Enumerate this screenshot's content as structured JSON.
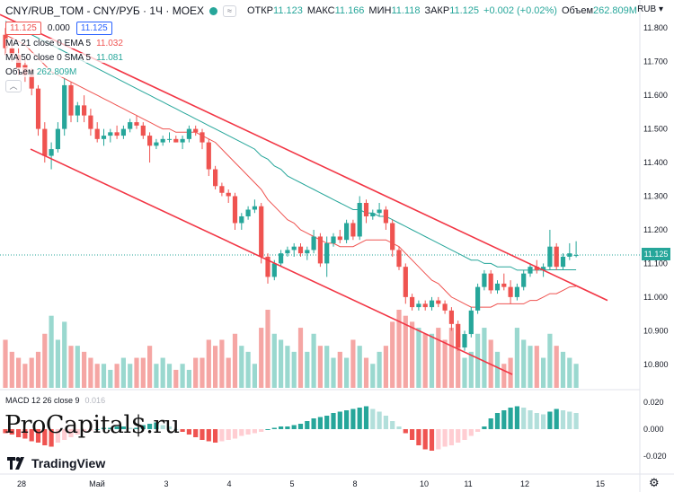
{
  "header": {
    "symbol": "CNY/RUB_TOM - CNY/РУБ · 1Ч · MOEX",
    "pill": "≈",
    "ohlc": [
      {
        "label": "ОТКР",
        "value": "11.123"
      },
      {
        "label": "МАКС",
        "value": "11.166"
      },
      {
        "label": "МИН",
        "value": "11.118"
      },
      {
        "label": "ЗАКР",
        "value": "11.125"
      }
    ],
    "change": "+0.002 (+0.02%)",
    "volume_label": "Объем",
    "volume_value": "262.809M"
  },
  "price_row": {
    "sell": "11.125",
    "spread": "0.000",
    "buy": "11.125"
  },
  "indicators": [
    {
      "name": "MA 21 close 0 EMA 5",
      "value": "11.032",
      "color": "#ef5350"
    },
    {
      "name": "MA 50 close 0 SMA 5",
      "value": "11.081",
      "color": "#26a69a"
    },
    {
      "name": "Объем",
      "value": "262.809M",
      "color": "#26a69a"
    }
  ],
  "collapse_icon": "chevron-up-icon",
  "macd": {
    "label": "MACD 12 26 close 9",
    "value": "0.016"
  },
  "currency": "RUB",
  "last_price_tag": "11.125",
  "watermark": "ProCapital$.ru",
  "brand": "TradingView",
  "colors": {
    "up": "#26a69a",
    "down": "#ef5350",
    "ema": "#ef5350",
    "sma": "#26a69a",
    "trend": "#f23645",
    "volume_up": "#9ad8cf",
    "volume_down": "#f5a6a4"
  },
  "chart_data": {
    "type": "candlestick",
    "timeframe": "1H",
    "y_ticks": [
      "11.800",
      "11.700",
      "11.600",
      "11.500",
      "11.400",
      "11.300",
      "11.200",
      "11.100",
      "11.000",
      "10.900",
      "10.800"
    ],
    "ylim": [
      10.73,
      11.83
    ],
    "x_ticks": [
      "28",
      "Май",
      "3",
      "4",
      "5",
      "8",
      "10",
      "11",
      "12",
      "15"
    ],
    "macd_ticks": [
      "0.020",
      "0.000",
      "-0.020"
    ],
    "macd_ylim": [
      -0.028,
      0.028
    ],
    "candles": [
      [
        11.78,
        11.8,
        11.72,
        11.74
      ],
      [
        11.74,
        11.76,
        11.7,
        11.72
      ],
      [
        11.72,
        11.74,
        11.66,
        11.68
      ],
      [
        11.69,
        11.71,
        11.64,
        11.66
      ],
      [
        11.66,
        11.68,
        11.6,
        11.62
      ],
      [
        11.62,
        11.63,
        11.48,
        11.5
      ],
      [
        11.5,
        11.52,
        11.4,
        11.42
      ],
      [
        11.42,
        11.46,
        11.38,
        11.44
      ],
      [
        11.44,
        11.52,
        11.43,
        11.5
      ],
      [
        11.5,
        11.65,
        11.48,
        11.63
      ],
      [
        11.63,
        11.64,
        11.52,
        11.54
      ],
      [
        11.54,
        11.58,
        11.52,
        11.57
      ],
      [
        11.57,
        11.6,
        11.52,
        11.54
      ],
      [
        11.54,
        11.56,
        11.48,
        11.5
      ],
      [
        11.5,
        11.52,
        11.46,
        11.47
      ],
      [
        11.47,
        11.5,
        11.45,
        11.48
      ],
      [
        11.48,
        11.5,
        11.46,
        11.49
      ],
      [
        11.49,
        11.51,
        11.47,
        11.48
      ],
      [
        11.48,
        11.51,
        11.47,
        11.5
      ],
      [
        11.5,
        11.53,
        11.49,
        11.52
      ],
      [
        11.52,
        11.54,
        11.5,
        11.51
      ],
      [
        11.51,
        11.52,
        11.47,
        11.48
      ],
      [
        11.48,
        11.49,
        11.4,
        11.45
      ],
      [
        11.45,
        11.47,
        11.44,
        11.46
      ],
      [
        11.46,
        11.48,
        11.45,
        11.47
      ],
      [
        11.47,
        11.49,
        11.46,
        11.47
      ],
      [
        11.47,
        11.48,
        11.46,
        11.46
      ],
      [
        11.46,
        11.48,
        11.44,
        11.47
      ],
      [
        11.47,
        11.51,
        11.46,
        11.5
      ],
      [
        11.5,
        11.51,
        11.48,
        11.49
      ],
      [
        11.49,
        11.5,
        11.44,
        11.46
      ],
      [
        11.46,
        11.47,
        11.36,
        11.38
      ],
      [
        11.38,
        11.39,
        11.32,
        11.33
      ],
      [
        11.33,
        11.34,
        11.3,
        11.31
      ],
      [
        11.31,
        11.32,
        11.28,
        11.3
      ],
      [
        11.3,
        11.31,
        11.2,
        11.22
      ],
      [
        11.22,
        11.25,
        11.2,
        11.24
      ],
      [
        11.24,
        11.27,
        11.23,
        11.26
      ],
      [
        11.26,
        11.29,
        11.25,
        11.27
      ],
      [
        11.27,
        11.28,
        11.1,
        11.12
      ],
      [
        11.12,
        11.13,
        11.04,
        11.06
      ],
      [
        11.06,
        11.11,
        11.05,
        11.1
      ],
      [
        11.1,
        11.14,
        11.09,
        11.13
      ],
      [
        11.13,
        11.15,
        11.12,
        11.14
      ],
      [
        11.14,
        11.16,
        11.12,
        11.15
      ],
      [
        11.15,
        11.16,
        11.12,
        11.13
      ],
      [
        11.13,
        11.15,
        11.11,
        11.14
      ],
      [
        11.14,
        11.2,
        11.13,
        11.18
      ],
      [
        11.18,
        11.19,
        11.09,
        11.1
      ],
      [
        11.1,
        11.18,
        11.06,
        11.16
      ],
      [
        11.16,
        11.19,
        11.15,
        11.18
      ],
      [
        11.18,
        11.2,
        11.16,
        11.17
      ],
      [
        11.17,
        11.23,
        11.16,
        11.22
      ],
      [
        11.22,
        11.23,
        11.17,
        11.18
      ],
      [
        11.18,
        11.3,
        11.17,
        11.28
      ],
      [
        11.28,
        11.29,
        11.22,
        11.24
      ],
      [
        11.24,
        11.26,
        11.23,
        11.25
      ],
      [
        11.25,
        11.28,
        11.24,
        11.26
      ],
      [
        11.26,
        11.27,
        11.2,
        11.22
      ],
      [
        11.22,
        11.23,
        11.12,
        11.14
      ],
      [
        11.14,
        11.15,
        11.08,
        11.09
      ],
      [
        11.09,
        11.1,
        10.98,
        11.0
      ],
      [
        11.0,
        11.01,
        10.96,
        10.97
      ],
      [
        10.97,
        10.99,
        10.96,
        10.98
      ],
      [
        10.98,
        10.99,
        10.96,
        10.97
      ],
      [
        10.97,
        11.0,
        10.96,
        10.99
      ],
      [
        10.99,
        11.0,
        10.97,
        10.98
      ],
      [
        10.98,
        10.99,
        10.95,
        10.96
      ],
      [
        10.96,
        10.97,
        10.9,
        10.92
      ],
      [
        10.92,
        10.93,
        10.84,
        10.85
      ],
      [
        10.85,
        10.9,
        10.84,
        10.89
      ],
      [
        10.89,
        10.97,
        10.88,
        10.96
      ],
      [
        10.96,
        11.04,
        10.95,
        11.03
      ],
      [
        11.03,
        11.08,
        11.02,
        11.07
      ],
      [
        11.07,
        11.08,
        11.01,
        11.02
      ],
      [
        11.02,
        11.05,
        11.01,
        11.04
      ],
      [
        11.04,
        11.07,
        11.02,
        11.03
      ],
      [
        11.03,
        11.05,
        10.98,
        11.0
      ],
      [
        11.0,
        11.04,
        10.99,
        11.03
      ],
      [
        11.03,
        11.08,
        11.02,
        11.07
      ],
      [
        11.07,
        11.1,
        11.06,
        11.09
      ],
      [
        11.09,
        11.11,
        11.07,
        11.08
      ],
      [
        11.08,
        11.1,
        11.06,
        11.09
      ],
      [
        11.09,
        11.2,
        11.08,
        11.15
      ],
      [
        11.15,
        11.16,
        11.08,
        11.09
      ],
      [
        11.09,
        11.13,
        11.08,
        11.12
      ],
      [
        11.12,
        11.16,
        11.11,
        11.13
      ],
      [
        11.123,
        11.166,
        11.118,
        11.125
      ]
    ],
    "volume": [
      8,
      6,
      5,
      4,
      5,
      6,
      9,
      12,
      8,
      11,
      7,
      7,
      6,
      5,
      4,
      4,
      3,
      4,
      5,
      4,
      5,
      5,
      7,
      4,
      5,
      4,
      3,
      4,
      3,
      5,
      5,
      8,
      7,
      8,
      5,
      9,
      7,
      6,
      4,
      10,
      13,
      9,
      8,
      7,
      6,
      10,
      6,
      9,
      7,
      7,
      5,
      6,
      5,
      8,
      7,
      5,
      4,
      6,
      7,
      11,
      13,
      12,
      11,
      10,
      9,
      9,
      10,
      8,
      10,
      9,
      5,
      6,
      9,
      10,
      8,
      6,
      4,
      5,
      10,
      8,
      7,
      7,
      5,
      9,
      7,
      6,
      5,
      4
    ],
    "macd_hist": [
      -0.003,
      -0.004,
      -0.006,
      -0.007,
      -0.009,
      -0.01,
      -0.012,
      -0.013,
      -0.01,
      -0.008,
      -0.006,
      -0.004,
      -0.002,
      -0.001,
      0,
      0.001,
      0.001,
      0.002,
      0.002,
      0.001,
      0.001,
      0.003,
      0.004,
      0.005,
      0.003,
      0.002,
      0,
      -0.002,
      -0.004,
      -0.006,
      -0.008,
      -0.009,
      -0.01,
      -0.009,
      -0.008,
      -0.007,
      -0.005,
      -0.004,
      -0.003,
      -0.002,
      0,
      0.001,
      0.002,
      0.002,
      0.003,
      0.004,
      0.006,
      0.008,
      0.009,
      0.01,
      0.012,
      0.013,
      0.014,
      0.015,
      0.016,
      0.017,
      0.015,
      0.013,
      0.01,
      0.006,
      0.002,
      -0.003,
      -0.008,
      -0.012,
      -0.015,
      -0.016,
      -0.015,
      -0.013,
      -0.012,
      -0.01,
      -0.008,
      -0.005,
      -0.002,
      0.002,
      0.008,
      0.012,
      0.014,
      0.016,
      0.017,
      0.016,
      0.014,
      0.012,
      0.011,
      0.013,
      0.015,
      0.014,
      0.013,
      0.012
    ],
    "ema21": [
      11.78,
      11.77,
      11.76,
      11.75,
      11.73,
      11.71,
      11.69,
      11.67,
      11.66,
      11.65,
      11.64,
      11.63,
      11.62,
      11.61,
      11.6,
      11.59,
      11.58,
      11.57,
      11.56,
      11.55,
      11.54,
      11.53,
      11.52,
      11.51,
      11.5,
      11.5,
      11.49,
      11.49,
      11.49,
      11.49,
      11.48,
      11.47,
      11.46,
      11.44,
      11.42,
      11.4,
      11.38,
      11.36,
      11.34,
      11.32,
      11.29,
      11.27,
      11.25,
      11.23,
      11.22,
      11.2,
      11.19,
      11.18,
      11.17,
      11.16,
      11.16,
      11.15,
      11.15,
      11.15,
      11.16,
      11.17,
      11.17,
      11.17,
      11.17,
      11.16,
      11.15,
      11.13,
      11.11,
      11.09,
      11.07,
      11.05,
      11.04,
      11.02,
      11.0,
      10.99,
      10.98,
      10.97,
      10.97,
      10.97,
      10.97,
      10.98,
      10.98,
      10.98,
      10.98,
      10.98,
      10.99,
      10.99,
      11.0,
      11.01,
      11.01,
      11.02,
      11.03,
      11.032
    ],
    "sma50": [
      11.82,
      11.81,
      11.8,
      11.79,
      11.78,
      11.77,
      11.76,
      11.75,
      11.74,
      11.73,
      11.72,
      11.71,
      11.7,
      11.69,
      11.68,
      11.67,
      11.66,
      11.65,
      11.64,
      11.63,
      11.62,
      11.61,
      11.6,
      11.59,
      11.58,
      11.57,
      11.56,
      11.55,
      11.54,
      11.53,
      11.52,
      11.51,
      11.5,
      11.49,
      11.48,
      11.47,
      11.46,
      11.45,
      11.44,
      11.42,
      11.41,
      11.39,
      11.38,
      11.36,
      11.35,
      11.34,
      11.33,
      11.32,
      11.31,
      11.3,
      11.29,
      11.28,
      11.27,
      11.26,
      11.26,
      11.25,
      11.25,
      11.24,
      11.24,
      11.23,
      11.22,
      11.21,
      11.2,
      11.19,
      11.18,
      11.17,
      11.16,
      11.15,
      11.14,
      11.13,
      11.12,
      11.11,
      11.11,
      11.1,
      11.1,
      11.09,
      11.09,
      11.09,
      11.08,
      11.08,
      11.08,
      11.08,
      11.08,
      11.081,
      11.081,
      11.081,
      11.081,
      11.081
    ],
    "trendlines": [
      {
        "from": [
          "2023-04-28",
          11.84
        ],
        "to": [
          "2023-05-15",
          10.99
        ]
      },
      {
        "from": [
          "2023-04-28",
          11.44
        ],
        "to": [
          "2023-05-11",
          10.77
        ]
      }
    ]
  }
}
